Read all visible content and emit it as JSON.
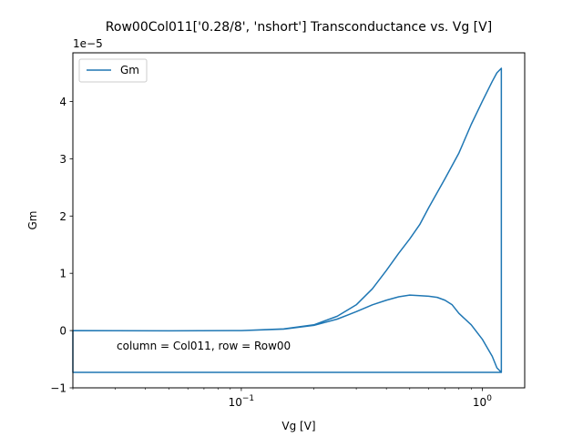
{
  "chart_data": {
    "type": "line",
    "title": "Row00Col011['0.28/8', 'nshort'] Transconductance vs. Vg [V]",
    "xlabel": "Vg [V]",
    "ylabel": "Gm",
    "x_scale": "log",
    "xlim": [
      0.02,
      1.5
    ],
    "ylim": [
      -1e-05,
      4.85e-05
    ],
    "y_offset_label": "1e−5",
    "x_ticks": [
      {
        "value": 0.1,
        "label": "10−1"
      },
      {
        "value": 1.0,
        "label": "100"
      }
    ],
    "y_ticks": [
      {
        "value": -1e-05,
        "label": "−1"
      },
      {
        "value": 0,
        "label": "0"
      },
      {
        "value": 1e-05,
        "label": "1"
      },
      {
        "value": 2e-05,
        "label": "2"
      },
      {
        "value": 3e-05,
        "label": "3"
      },
      {
        "value": 4e-05,
        "label": "4"
      }
    ],
    "grid": false,
    "legend_placement": "top-left",
    "annotation": "column = Col011, row = Row00",
    "series": [
      {
        "name": "Gm",
        "color": "#1f77b4",
        "x": [
          0.02,
          0.05,
          0.1,
          0.15,
          0.2,
          0.25,
          0.3,
          0.35,
          0.4,
          0.45,
          0.5,
          0.55,
          0.6,
          0.7,
          0.8,
          0.9,
          1.0,
          1.1,
          1.15,
          1.2,
          1.2,
          1.15,
          1.1,
          1.0,
          0.9,
          0.8,
          0.75,
          0.7,
          0.65,
          0.6,
          0.55,
          0.5,
          0.45,
          0.4,
          0.35,
          0.3,
          0.25,
          0.2,
          0.15,
          0.1,
          0.05,
          0.02,
          0.02,
          0.1,
          0.5,
          1.0,
          1.2
        ],
        "y": [
          0.0,
          -5e-08,
          0.0,
          3e-07,
          1e-06,
          2.5e-06,
          4.5e-06,
          7.3e-06,
          1.05e-05,
          1.35e-05,
          1.6e-05,
          1.85e-05,
          2.15e-05,
          2.65e-05,
          3.1e-05,
          3.6e-05,
          4e-05,
          4.35e-05,
          4.5e-05,
          4.58e-05,
          -7.3e-06,
          -6.5e-06,
          -4.5e-06,
          -1.5e-06,
          1e-06,
          3e-06,
          4.5e-06,
          5.3e-06,
          5.8e-06,
          6e-06,
          6.1e-06,
          6.2e-06,
          5.9e-06,
          5.3e-06,
          4.5e-06,
          3.3e-06,
          2e-06,
          9e-07,
          2.5e-07,
          0.0,
          -5e-08,
          0.0,
          -7.3e-06,
          -7.3e-06,
          -7.3e-06,
          -7.3e-06,
          -7.3e-06
        ]
      }
    ]
  }
}
